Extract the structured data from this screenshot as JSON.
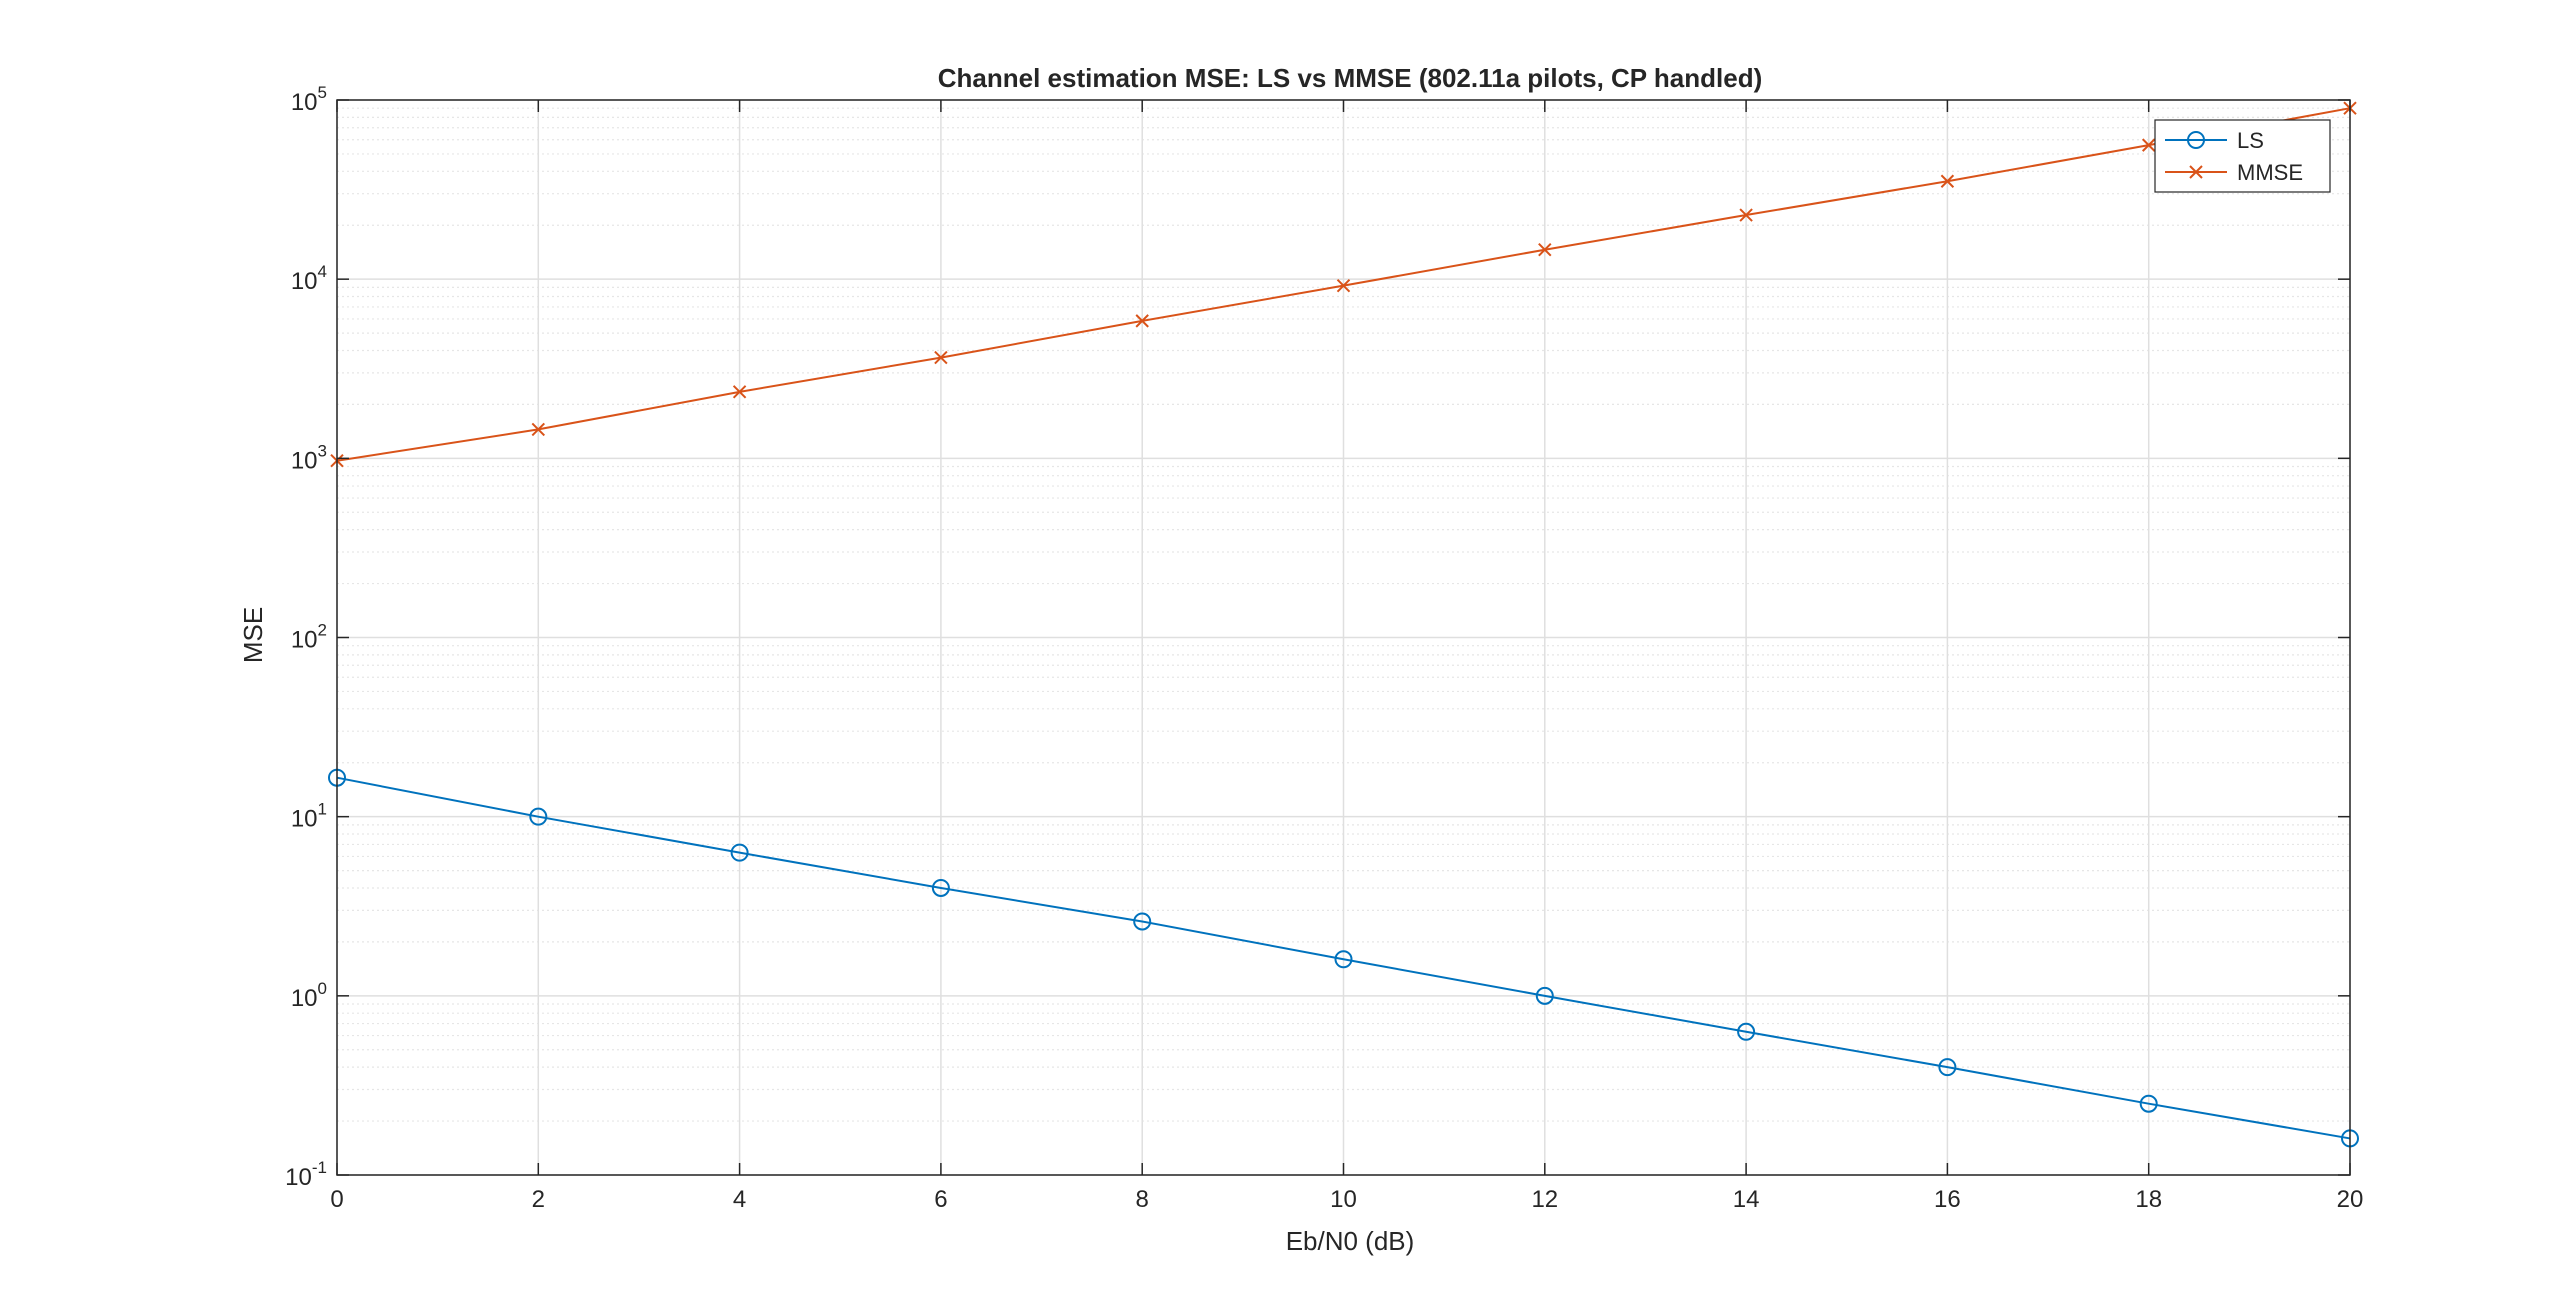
{
  "chart_data": {
    "type": "line",
    "title": "Channel estimation MSE: LS vs MMSE (802.11a pilots, CP handled)",
    "xlabel": "Eb/N0 (dB)",
    "ylabel": "MSE",
    "xlim": [
      0,
      20
    ],
    "ylim": [
      0.1,
      100000
    ],
    "yscale": "log",
    "grid": true,
    "minor_grid": true,
    "legend_location": "top-right",
    "x_ticks": [
      0,
      2,
      4,
      6,
      8,
      10,
      12,
      14,
      16,
      18,
      20
    ],
    "y_ticks": [
      {
        "base": "10",
        "exp": "-1",
        "value": 0.1
      },
      {
        "base": "10",
        "exp": "0",
        "value": 1
      },
      {
        "base": "10",
        "exp": "1",
        "value": 10
      },
      {
        "base": "10",
        "exp": "2",
        "value": 100
      },
      {
        "base": "10",
        "exp": "3",
        "value": 1000
      },
      {
        "base": "10",
        "exp": "4",
        "value": 10000
      },
      {
        "base": "10",
        "exp": "5",
        "value": 100000
      }
    ],
    "x": [
      0,
      2,
      4,
      6,
      8,
      10,
      12,
      14,
      16,
      18,
      20
    ],
    "series": [
      {
        "name": "LS",
        "color": "#0072BD",
        "marker": "circle",
        "values": [
          16.5,
          10.0,
          6.3,
          4.0,
          2.6,
          1.6,
          1.0,
          0.63,
          0.4,
          0.25,
          0.16
        ]
      },
      {
        "name": "MMSE",
        "color": "#D95319",
        "marker": "x",
        "values": [
          970,
          1450,
          2350,
          3650,
          5850,
          9200,
          14600,
          22800,
          35200,
          56000,
          90000
        ]
      }
    ]
  }
}
